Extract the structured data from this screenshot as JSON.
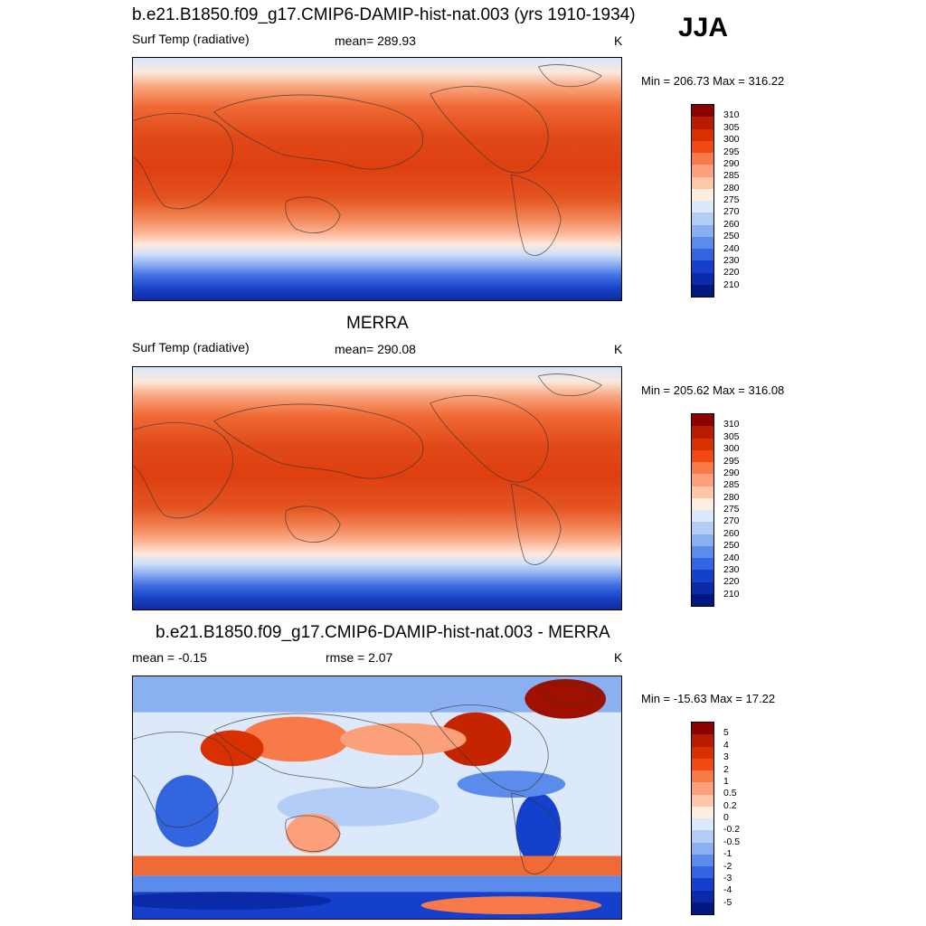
{
  "season": "JJA",
  "panels": [
    {
      "title": "b.e21.B1850.f09_g17.CMIP6-DAMIP-hist-nat.003 (yrs 1910-1934)",
      "left_label": "Surf Temp (radiative)",
      "center_label": "mean= 289.93",
      "units": "K",
      "minmax": "Min = 206.73 Max = 316.22"
    },
    {
      "title": "MERRA",
      "left_label": "Surf Temp (radiative)",
      "center_label": "mean= 290.08",
      "units": "K",
      "minmax": "Min = 205.62 Max = 316.08"
    },
    {
      "title": "b.e21.B1850.f09_g17.CMIP6-DAMIP-hist-nat.003 - MERRA",
      "left_label": "mean =  -0.15",
      "center_label": "rmse =   2.07",
      "units": "K",
      "minmax": "Min = -15.63 Max =  17.22"
    }
  ],
  "colorbars": {
    "temperature": {
      "levels": [
        "310",
        "305",
        "300",
        "295",
        "290",
        "285",
        "280",
        "275",
        "270",
        "260",
        "250",
        "240",
        "230",
        "220",
        "210"
      ],
      "colors": [
        "#8b0000",
        "#b81c00",
        "#d93000",
        "#f04a12",
        "#f77a48",
        "#fba07a",
        "#fdc7a8",
        "#fdeee0",
        "#dbe9fb",
        "#b4cdf7",
        "#8bb0f2",
        "#5c8ceb",
        "#3365e0",
        "#1540cc",
        "#0a2aa8",
        "#001880"
      ]
    },
    "difference": {
      "levels": [
        "5",
        "4",
        "3",
        "2",
        "1",
        "0.5",
        "0.2",
        "0",
        "-0.2",
        "-0.5",
        "-1",
        "-2",
        "-3",
        "-4",
        "-5"
      ],
      "colors": [
        "#8b0000",
        "#b81c00",
        "#d93000",
        "#f04a12",
        "#f77a48",
        "#fba07a",
        "#fdc7a8",
        "#fdeee0",
        "#dbe9fb",
        "#b4cdf7",
        "#8bb0f2",
        "#5c8ceb",
        "#3365e0",
        "#1540cc",
        "#0a2aa8",
        "#001880"
      ]
    }
  }
}
